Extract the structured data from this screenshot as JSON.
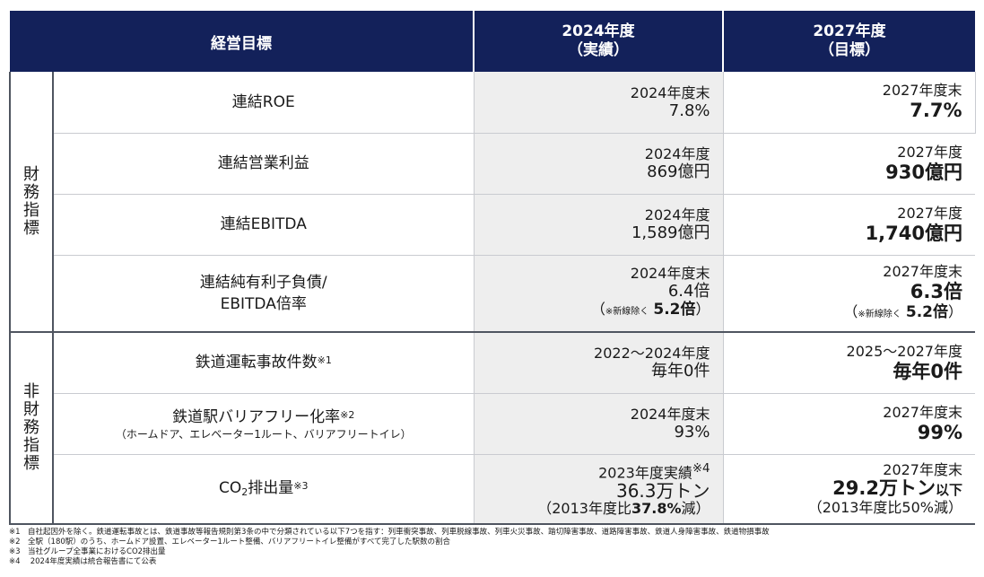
{
  "header": {
    "goal": "経営目標",
    "col_actual_year": "2024年度",
    "col_actual_sub": "（実績）",
    "col_target_year": "2027年度",
    "col_target_sub": "（目標）"
  },
  "groups": {
    "financial_chars": [
      "財",
      "務",
      "指",
      "標"
    ],
    "nonfinancial_chars": [
      "非",
      "財",
      "務",
      "指",
      "標"
    ]
  },
  "financial": [
    {
      "name": "連結ROE",
      "actual_label": "2024年度末",
      "actual_value": "7.8%",
      "target_label": "2027年度末",
      "target_value": "7.7%"
    },
    {
      "name": "連結営業利益",
      "actual_label": "2024年度",
      "actual_value": "869億円",
      "target_label": "2027年度",
      "target_value": "930億円"
    },
    {
      "name": "連結EBITDA",
      "actual_label": "2024年度",
      "actual_value": "1,589億円",
      "target_label": "2027年度",
      "target_value": "1,740億円"
    },
    {
      "name_line1": "連結純有利子負債/",
      "name_line2": "EBITDA倍率",
      "actual_label": "2024年度末",
      "actual_value": "6.4倍",
      "actual_note_open": "（",
      "actual_note_small": "※新線除く",
      "actual_note_value": "5.2倍",
      "actual_note_close": "）",
      "target_label": "2027年度末",
      "target_value": "6.3倍",
      "target_note_open": "（",
      "target_note_small": "※新線除く",
      "target_note_value": "5.2倍",
      "target_note_close": "）"
    }
  ],
  "nonfinancial": [
    {
      "name": "鉄道運転事故件数",
      "name_sup": "※1",
      "actual_label": "2022～2024年度",
      "actual_value": "毎年0件",
      "target_label": "2025～2027年度",
      "target_value": "毎年0件"
    },
    {
      "name": "鉄道駅バリアフリー化率",
      "name_sup": "※2",
      "name_sub": "（ホームドア、エレベーター1ルート、バリアフリートイレ）",
      "actual_label": "2024年度末",
      "actual_value": "93%",
      "target_label": "2027年度末",
      "target_value": "99%"
    },
    {
      "name_a": "CO",
      "name_sub2": "2",
      "name_b": "排出量",
      "name_sup": "※3",
      "actual_label": "2023年度実績",
      "actual_label_sup": "※4",
      "actual_value": "36.3万トン",
      "actual_note_a": "（2013年度比",
      "actual_note_b": "37.8%",
      "actual_note_c": "減）",
      "target_label": "2027年度末",
      "target_value": "29.2万トン",
      "target_value_suffix": "以下",
      "target_note": "（2013年度比50%減）"
    }
  ],
  "footnotes": [
    "※1　自社起因外を除く。鉄道運転事故とは、鉄道事故等報告規則第3条の中で分類されている以下7つを指す：列車衝突事故、列車脱線事故、列車火災事故、踏切障害事故、道路障害事故、鉄道人身障害事故、鉄道物損事故",
    "※2　全駅（180駅）のうち、ホームドア設置、エレベーター1ルート整備、バリアフリートイレ整備がすべて完了した駅数の割合",
    "※3　当社グループ全事業におけるCO2排出量",
    "※4　 2024年度実績は統合報告書にて公表"
  ]
}
